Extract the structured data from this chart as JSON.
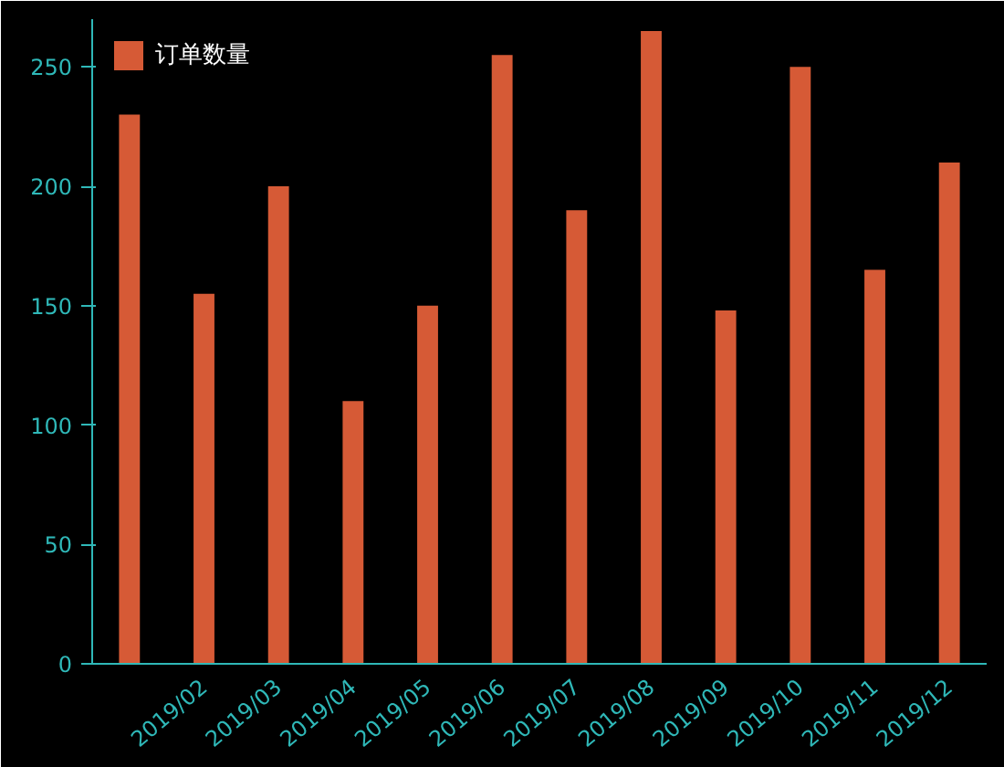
{
  "chart_data": {
    "type": "bar",
    "categories": [
      null,
      "2019/02",
      "2019/03",
      "2019/04",
      "2019/05",
      "2019/06",
      "2019/07",
      "2019/08",
      "2019/09",
      "2019/10",
      "2019/11",
      "2019/12"
    ],
    "series": [
      {
        "name": "订单数量",
        "color": "#d65a36",
        "values": [
          230,
          155,
          200,
          110,
          150,
          255,
          190,
          265,
          148,
          250,
          165,
          210
        ]
      }
    ],
    "ylim": [
      0,
      270
    ],
    "yticks": [
      0,
      50,
      100,
      150,
      200,
      250
    ],
    "grid": false,
    "legend": "top left"
  }
}
